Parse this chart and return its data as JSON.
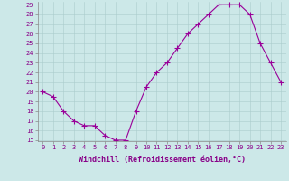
{
  "x": [
    0,
    1,
    2,
    3,
    4,
    5,
    6,
    7,
    8,
    9,
    10,
    11,
    12,
    13,
    14,
    15,
    16,
    17,
    18,
    19,
    20,
    21,
    22,
    23
  ],
  "y": [
    20,
    19.5,
    18,
    17,
    16.5,
    16.5,
    15.5,
    15,
    15,
    18,
    20.5,
    22,
    23,
    24.5,
    26,
    27,
    28,
    29,
    29,
    29,
    28,
    25,
    23,
    21
  ],
  "title": "",
  "xlabel": "Windchill (Refroidissement éolien,°C)",
  "ylabel": "",
  "line_color": "#990099",
  "marker": "+",
  "marker_size": 4,
  "bg_color": "#cce8e8",
  "grid_color": "#aacccc",
  "xlim": [
    -0.5,
    23.5
  ],
  "ylim": [
    15,
    29
  ],
  "ytick_step": 1,
  "yticks": [
    15,
    16,
    17,
    18,
    19,
    20,
    21,
    22,
    23,
    24,
    25,
    26,
    27,
    28,
    29
  ],
  "xticks": [
    0,
    1,
    2,
    3,
    4,
    5,
    6,
    7,
    8,
    9,
    10,
    11,
    12,
    13,
    14,
    15,
    16,
    17,
    18,
    19,
    20,
    21,
    22,
    23
  ],
  "tick_fontsize": 5,
  "xlabel_fontsize": 6,
  "lw": 0.8,
  "marker_lw": 0.8
}
